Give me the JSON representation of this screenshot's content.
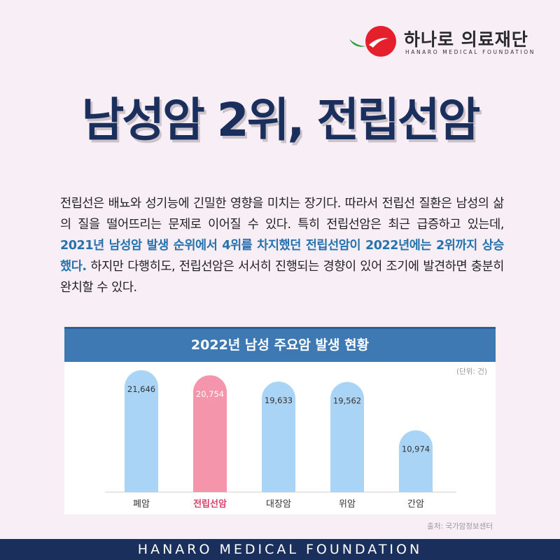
{
  "brand": {
    "name": "하나로 의료재단",
    "tagline": "HANARO MEDICAL FOUNDATION",
    "colors": {
      "red": "#e51f2b",
      "green": "#2e9e3a"
    }
  },
  "title": "남성암 2위, 전립선암",
  "paragraph": {
    "part1": "전립선은 배뇨와 성기능에 긴밀한 영향을 미치는 장기다. 따라서 전립선 질환은 남성의 삶의 질을 떨어뜨리는 문제로 이어질 수 있다. 특히 전립선암은 최근 급증하고 있는데, ",
    "highlight": "2021년 남성암 발생 순위에서 4위를 차지했던 전립선암이 2022년에는 2위까지 상승했다.",
    "part2": " 하지만 다행히도, 전립선암은 서서히 진행되는 경향이 있어 조기에 발견하면 충분히 완치할 수 있다."
  },
  "chart_data": {
    "type": "bar",
    "title": "2022년 남성 주요암 발생 현황",
    "unit": "(단위: 건)",
    "categories": [
      "폐암",
      "전립선암",
      "대장암",
      "위암",
      "간암"
    ],
    "values": [
      21646,
      20754,
      19633,
      19562,
      10974
    ],
    "value_labels": [
      "21,646",
      "20,754",
      "19,633",
      "19,562",
      "10,974"
    ],
    "highlight_index": 1,
    "colors": {
      "bar": "#a9d4f5",
      "highlight_bar": "#f595ac",
      "highlight_label": "#d6416a",
      "header": "#3e79b3"
    },
    "ylim": [
      0,
      23000
    ],
    "source": "출처: 국가암정보센터"
  },
  "footer": "HANARO MEDICAL FOUNDATION"
}
